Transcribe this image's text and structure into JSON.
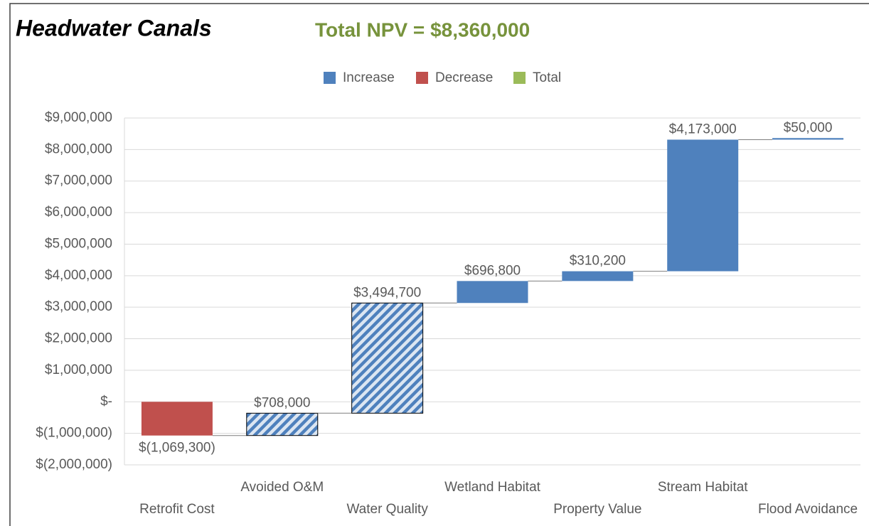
{
  "chart_data": {
    "type": "waterfall",
    "title": "Headwater Canals",
    "subtitle": "Total NPV = $8,360,000",
    "legend": [
      {
        "name": "Increase",
        "color": "#4f81bd"
      },
      {
        "name": "Decrease",
        "color": "#c0504d"
      },
      {
        "name": "Total",
        "color": "#9bbb59"
      }
    ],
    "categories": [
      "Retrofit Cost",
      "Avoided O&M",
      "Water Quality",
      "Wetland Habitat",
      "Property Value",
      "Stream Habitat",
      "Flood Avoidance"
    ],
    "values": [
      -1069300,
      708000,
      3494700,
      696800,
      310200,
      4173000,
      50000
    ],
    "value_labels": [
      "$(1,069,300)",
      "$708,000",
      "$3,494,700",
      "$696,800",
      "$310,200",
      "$4,173,000",
      "$50,000"
    ],
    "hatched": [
      false,
      true,
      true,
      false,
      false,
      false,
      false
    ],
    "ylim": [
      -2000000,
      9000000
    ],
    "yticks": [
      {
        "value": -2000000,
        "label": "$(2,000,000)"
      },
      {
        "value": -1000000,
        "label": "$(1,000,000)"
      },
      {
        "value": 0,
        "label": "$-"
      },
      {
        "value": 1000000,
        "label": "$1,000,000"
      },
      {
        "value": 2000000,
        "label": "$2,000,000"
      },
      {
        "value": 3000000,
        "label": "$3,000,000"
      },
      {
        "value": 4000000,
        "label": "$4,000,000"
      },
      {
        "value": 5000000,
        "label": "$5,000,000"
      },
      {
        "value": 6000000,
        "label": "$6,000,000"
      },
      {
        "value": 7000000,
        "label": "$7,000,000"
      },
      {
        "value": 8000000,
        "label": "$8,000,000"
      },
      {
        "value": 9000000,
        "label": "$9,000,000"
      }
    ],
    "grid": true
  }
}
